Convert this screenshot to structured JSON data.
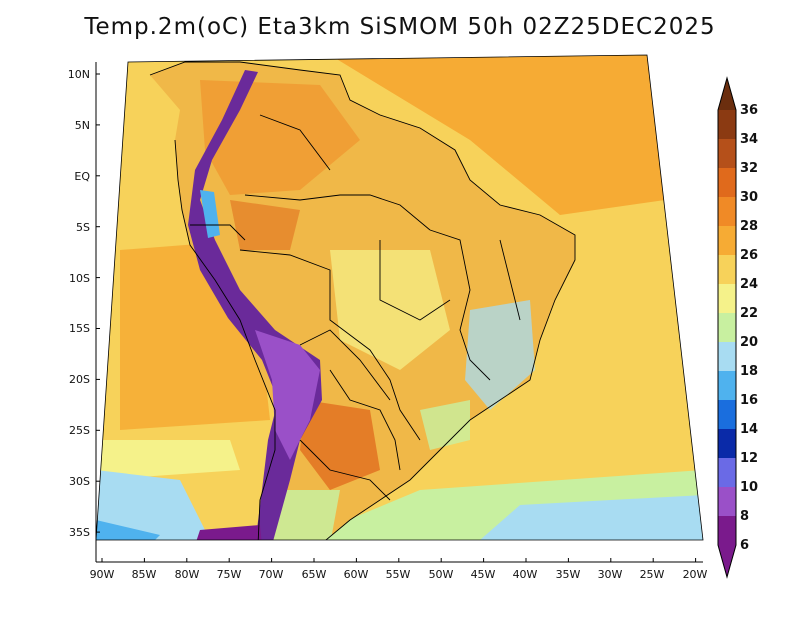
{
  "title": "Temp.2m(oC) Eta3km SiSMOM 50h 02Z25DEC2025",
  "lat_labels": [
    "10N",
    "5N",
    "EQ",
    "5S",
    "10S",
    "15S",
    "20S",
    "25S",
    "30S",
    "35S"
  ],
  "lon_labels": [
    "90W",
    "85W",
    "80W",
    "75W",
    "70W",
    "65W",
    "60W",
    "55W",
    "50W",
    "45W",
    "40W",
    "35W",
    "30W",
    "25W",
    "20W"
  ],
  "colorbar": {
    "levels": [
      "36",
      "34",
      "32",
      "30",
      "28",
      "26",
      "24",
      "22",
      "20",
      "18",
      "16",
      "14",
      "12",
      "10",
      "8",
      "6"
    ],
    "colors": [
      "#6b2e0e",
      "#8b3a12",
      "#b5501a",
      "#e06a1c",
      "#f08a26",
      "#f6ab34",
      "#f7d25a",
      "#f5f28a",
      "#c8f0a0",
      "#a8dcf2",
      "#4fb2ee",
      "#1a6ede",
      "#0a2aa8",
      "#6a6ae6",
      "#9a50c8",
      "#7a1a8c"
    ]
  },
  "colors": {
    "sea_warm": "#f6ab34",
    "sea_mid": "#f7d25a",
    "sea_cool": "#f5f28a",
    "land_base": "#f0b848",
    "andes": "#6a2a9a"
  }
}
